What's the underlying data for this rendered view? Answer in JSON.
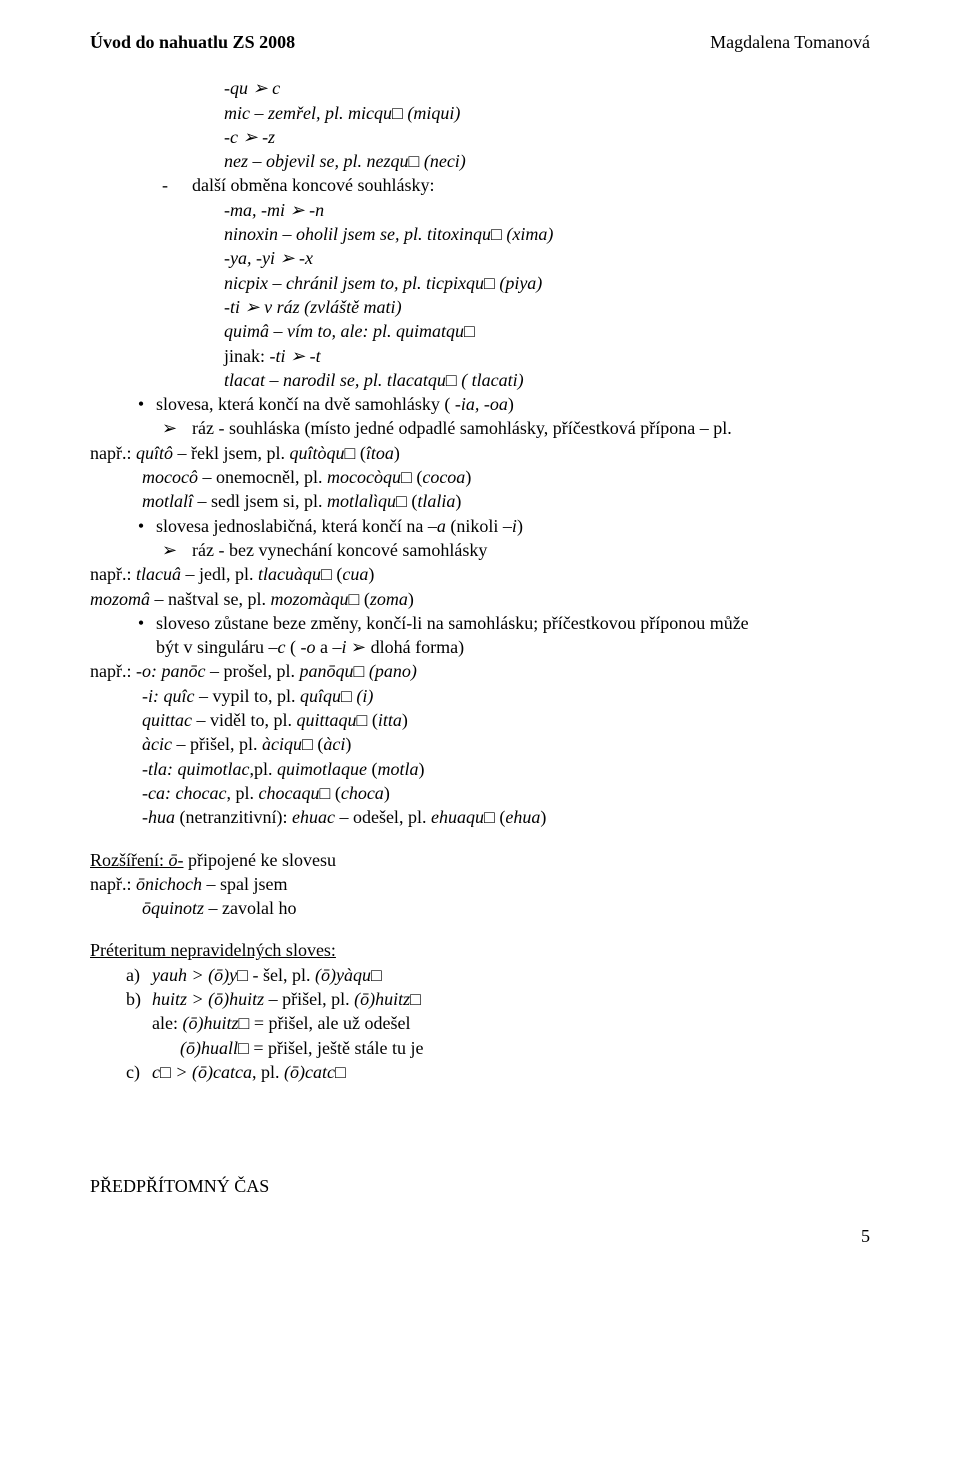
{
  "header": {
    "left": "Úvod do nahuatlu ZS 2008",
    "right": "Magdalena Tomanová"
  },
  "l1": "-qu ➢ c",
  "l2": "mic – zemřel, pl. micqu□ (miqui)",
  "l3": "-c ➢ -z",
  "l4": "nez – objevil se, pl. nezqu□ (neci)",
  "l5a": "-",
  "l5b": "další obměna koncové souhlásky:",
  "l6": "-ma, -mi ➢ -n",
  "l7": "ninoxin – oholil jsem se, pl. titoxinqu□ (xima)",
  "l8": "-ya, -yi ➢ -x",
  "l9": "nicpix – chránil jsem to, pl. ticpixqu□ (piya)",
  "l10": "-ti ➢ v ráz (zvláště mati)",
  "l11": "quimâ – vím to, ale: pl. quimatqu□",
  "l12": "jinak: -ti ➢ -t",
  "l13": "tlacat – narodil se, pl. tlacatqu□ ( tlacati)",
  "b1": "slovesa, která končí na dvě samohlásky ( -ia, -oa)",
  "a1": "ráz - souhláska (místo jedné odpadlé samohlásky, příčestková přípona – pl.",
  "n1": "např.:  quîtô – řekl jsem, pl. quîtòqu□ (îtoa)",
  "n1b": "mococô – onemocněl, pl. mococòqu□ (cocoa)",
  "n1c": "motlalî – sedl jsem si, pl. motlalìqu□ (tlalia)",
  "b2": "slovesa jednoslabičná, která končí na –a (nikoli –i)",
  "a2": "ráz - bez vynechání koncové samohlásky",
  "n2": "např.:  tlacuâ – jedl, pl. tlacuàqu□ (cua)",
  "m1": "mozomâ – naštval se, pl. mozomàqu□ (zoma)",
  "b3": "sloveso zůstane beze změny, končí-li na samohlásku; příčestkovou příponou může",
  "b3b": "být v singuláru –c ( -o a –i ➢ dlohá forma)",
  "n3": "např.:  -o: panōc – prošel, pl. panōqu□ (pano)",
  "n3b": "-i: quîc – vypil to, pl. quîqu□ (i)",
  "n3c": "quittac – viděl to, pl. quittaqu□ (itta)",
  "n3d": "àcic – přišel, pl. àciqu□ (àci)",
  "n3e": "-tla: quimotlac,pl. quimotlaque (motla)",
  "n3f": "-ca: chocac, pl. chocaqu□ (choca)",
  "n3g": "-hua (netranzitivní): ehuac – odešel, pl. ehuaqu□ (ehua)",
  "roz_u": "Rozšíření: ō-",
  "roz_rest": " připojené ke slovesu",
  "roz2": "např.: ōnichoch – spal jsem",
  "roz3": "ōquinotz – zavolal ho",
  "pret_title": "Préteritum nepravidelných sloves:",
  "pa": "yauh > (ō)y□ - šel, pl. (ō)yàqu□",
  "pb": "huitz > (ō)huitz – přišel, pl. (ō)huitz□",
  "pb2": "ale: (ō)huitz□ = přišel, ale už odešel",
  "pb3": "(ō)huall□ = přišel, ještě stále tu je",
  "pc": "c□ > (ō)catca, pl. (ō)catc□",
  "final": "PŘEDPŘÍTOMNÝ ČAS",
  "page": "5"
}
